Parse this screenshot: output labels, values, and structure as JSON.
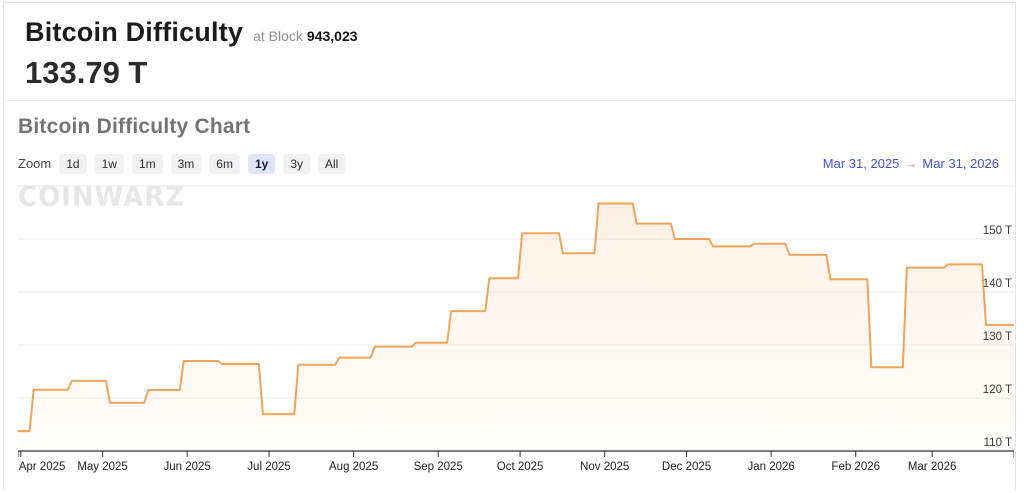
{
  "header": {
    "title": "Bitcoin Difficulty",
    "at_block_label": "at Block",
    "block_number": "943,023",
    "current_value": "133.79 T"
  },
  "chart_section": {
    "title": "Bitcoin Difficulty Chart",
    "zoom_label": "Zoom",
    "zoom_buttons": [
      {
        "label": "1d",
        "selected": false
      },
      {
        "label": "1w",
        "selected": false
      },
      {
        "label": "1m",
        "selected": false
      },
      {
        "label": "3m",
        "selected": false
      },
      {
        "label": "6m",
        "selected": false
      },
      {
        "label": "1y",
        "selected": true
      },
      {
        "label": "3y",
        "selected": false
      },
      {
        "label": "All",
        "selected": false
      }
    ],
    "range_start": "Mar 31, 2025",
    "range_arrow": "→",
    "range_end": "Mar 31, 2026",
    "watermark": "COINWARZ"
  },
  "chart_data": {
    "type": "area",
    "step": true,
    "title": "Bitcoin Difficulty Chart",
    "xlabel": "",
    "ylabel": "",
    "unit": "T",
    "legend": "none",
    "grid": true,
    "ylim": [
      110,
      160
    ],
    "x_range_days": 365,
    "x_start": "Mar 31, 2025",
    "x_end": "Mar 31, 2026",
    "yticks": [
      {
        "value": 110,
        "label": "110 T"
      },
      {
        "value": 120,
        "label": "120 T"
      },
      {
        "value": 130,
        "label": "130 T"
      },
      {
        "value": 140,
        "label": "140 T"
      },
      {
        "value": 150,
        "label": "150 T"
      },
      {
        "value": 160,
        "label": ""
      }
    ],
    "x_ticks": [
      {
        "label": "Apr 2025",
        "day": 1
      },
      {
        "label": "May 2025",
        "day": 31
      },
      {
        "label": "Jun 2025",
        "day": 62
      },
      {
        "label": "Jul 2025",
        "day": 92
      },
      {
        "label": "Aug 2025",
        "day": 123
      },
      {
        "label": "Sep 2025",
        "day": 154
      },
      {
        "label": "Oct 2025",
        "day": 184
      },
      {
        "label": "Nov 2025",
        "day": 215
      },
      {
        "label": "Dec 2025",
        "day": 245
      },
      {
        "label": "Jan 2026",
        "day": 276
      },
      {
        "label": "Feb 2026",
        "day": 307
      },
      {
        "label": "Mar 2026",
        "day": 335
      }
    ],
    "series": [
      {
        "name": "Bitcoin Difficulty",
        "points": [
          {
            "date": "Mar 31, 2025",
            "day": 0,
            "value": 113.76
          },
          {
            "date": "Apr 5, 2025",
            "day": 5,
            "value": 121.55
          },
          {
            "date": "Apr 19, 2025",
            "day": 19,
            "value": 123.23
          },
          {
            "date": "May 3, 2025",
            "day": 33,
            "value": 119.12
          },
          {
            "date": "May 17, 2025",
            "day": 47,
            "value": 121.51
          },
          {
            "date": "May 30, 2025",
            "day": 60,
            "value": 126.98
          },
          {
            "date": "Jun 13, 2025",
            "day": 74,
            "value": 126.41
          },
          {
            "date": "Jun 28, 2025",
            "day": 89,
            "value": 116.96
          },
          {
            "date": "Jul 11, 2025",
            "day": 102,
            "value": 126.27
          },
          {
            "date": "Jul 26, 2025",
            "day": 117,
            "value": 127.62
          },
          {
            "date": "Aug 8, 2025",
            "day": 130,
            "value": 129.7
          },
          {
            "date": "Aug 23, 2025",
            "day": 145,
            "value": 130.42
          },
          {
            "date": "Sep 5, 2025",
            "day": 158,
            "value": 136.4
          },
          {
            "date": "Sep 19, 2025",
            "day": 172,
            "value": 142.6
          },
          {
            "date": "Oct 1, 2025",
            "day": 184,
            "value": 151.1
          },
          {
            "date": "Oct 16, 2025",
            "day": 199,
            "value": 147.3
          },
          {
            "date": "Oct 29, 2025",
            "day": 212,
            "value": 156.7
          },
          {
            "date": "Nov 12, 2025",
            "day": 226,
            "value": 152.9
          },
          {
            "date": "Nov 26, 2025",
            "day": 240,
            "value": 150.0
          },
          {
            "date": "Dec 10, 2025",
            "day": 254,
            "value": 148.6
          },
          {
            "date": "Dec 25, 2025",
            "day": 269,
            "value": 149.1
          },
          {
            "date": "Jan 7, 2026",
            "day": 282,
            "value": 147.0
          },
          {
            "date": "Jan 22, 2026",
            "day": 297,
            "value": 142.4
          },
          {
            "date": "Feb 6, 2026",
            "day": 312,
            "value": 125.8
          },
          {
            "date": "Feb 19, 2026",
            "day": 325,
            "value": 144.6
          },
          {
            "date": "Mar 6, 2026",
            "day": 340,
            "value": 145.2
          },
          {
            "date": "Mar 20, 2026",
            "day": 354,
            "value": 133.79
          }
        ]
      }
    ],
    "colors": {
      "line": "#f0a55c",
      "area_top": "rgba(243,166,85,0.16)",
      "area_bottom": "rgba(243,166,85,0.02)",
      "grid": "#ececee",
      "axis": "#2f2f33",
      "tick_label": "#222226",
      "y_label": "#3c3c40"
    }
  },
  "ui_colors": {
    "link": "#4353de",
    "selected_zoom_bg": "#e0e4f8",
    "watermark": "#e7e7e7"
  }
}
